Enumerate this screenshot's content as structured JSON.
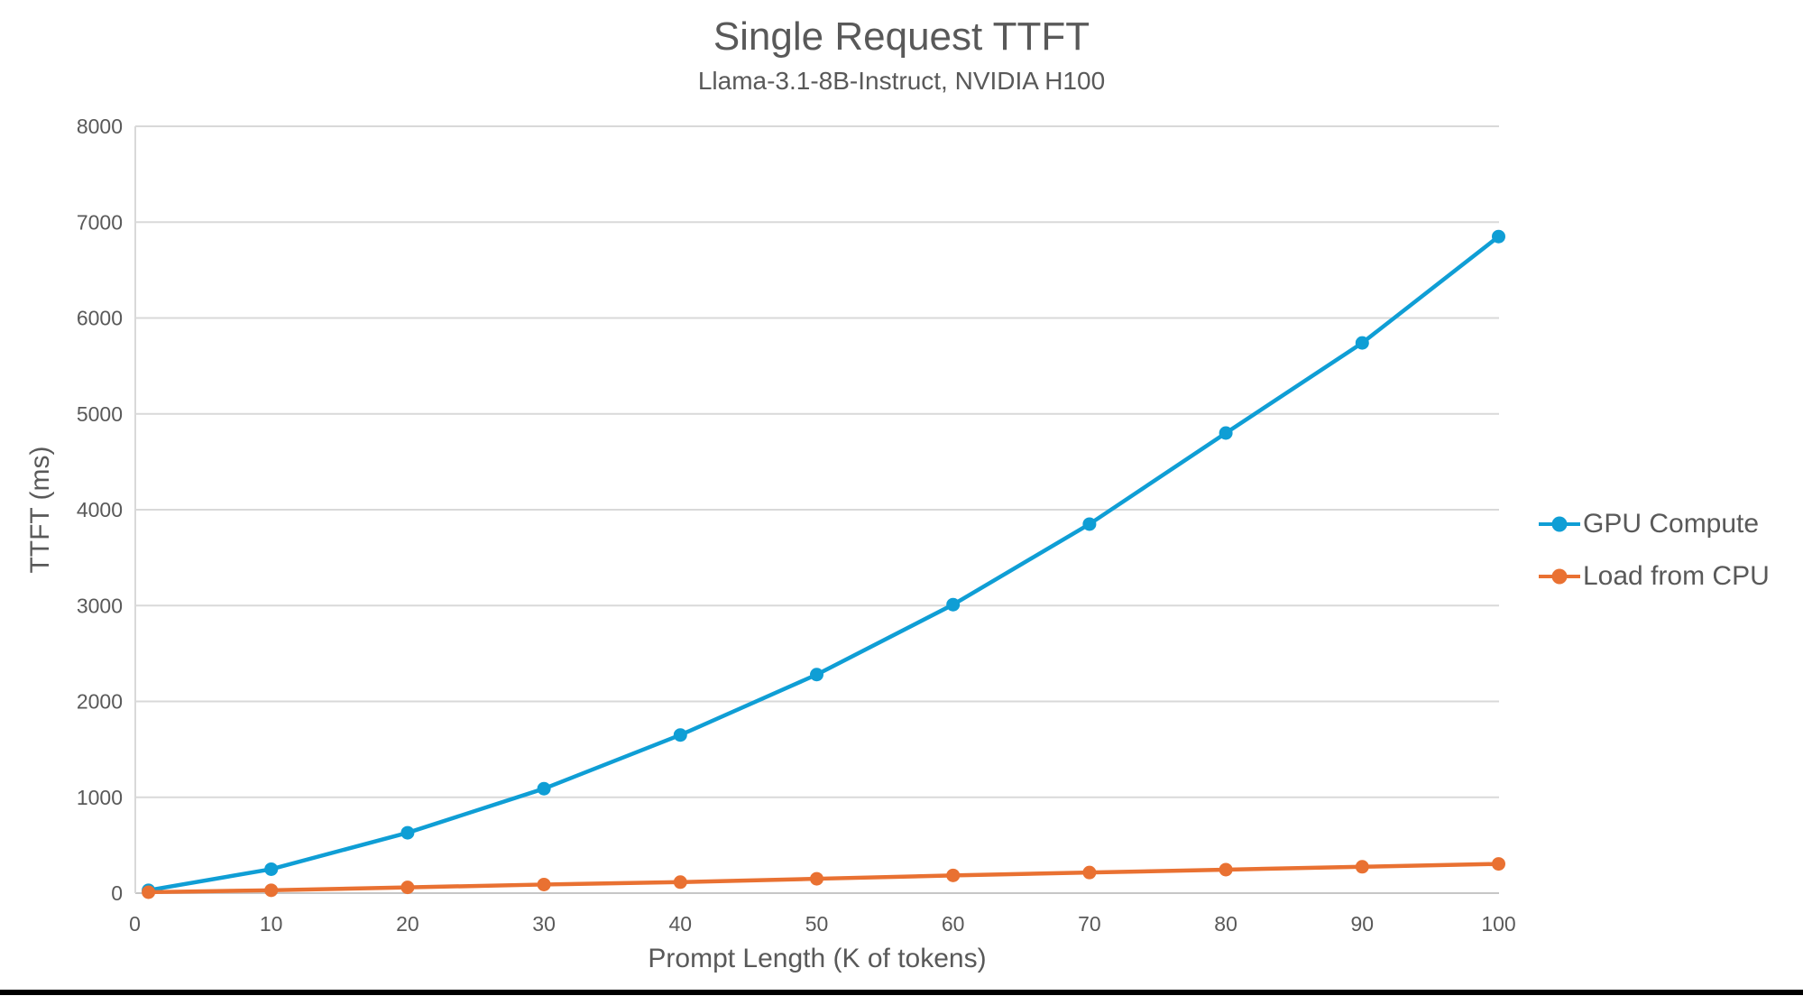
{
  "chart_data": {
    "type": "line",
    "title": "Single Request TTFT",
    "subtitle": "Llama-3.1-8B-Instruct, NVIDIA H100",
    "xlabel": "Prompt Length (K of tokens)",
    "ylabel": "TTFT (ms)",
    "xlim": [
      0,
      100
    ],
    "ylim": [
      0,
      8000
    ],
    "x_ticks": [
      0,
      10,
      20,
      30,
      40,
      50,
      60,
      70,
      80,
      90,
      100
    ],
    "y_ticks": [
      0,
      1000,
      2000,
      3000,
      4000,
      5000,
      6000,
      7000,
      8000
    ],
    "grid": "horizontal",
    "legend_position": "right",
    "x": [
      1,
      10,
      20,
      30,
      40,
      50,
      60,
      70,
      80,
      90,
      100
    ],
    "series": [
      {
        "name": "GPU Compute",
        "color": "#0f9ed5",
        "values": [
          30,
          250,
          630,
          1090,
          1650,
          2280,
          3010,
          3850,
          4800,
          5740,
          6850
        ]
      },
      {
        "name": "Load from CPU",
        "color": "#e97132",
        "values": [
          10,
          30,
          60,
          90,
          115,
          150,
          185,
          215,
          245,
          275,
          305
        ]
      }
    ]
  },
  "styles": {
    "text_color": "#595959",
    "grid_color": "#d9d9d9",
    "axis_line_color": "#c6c6c6",
    "background": "#ffffff",
    "bottom_rule_color": "#000000"
  }
}
